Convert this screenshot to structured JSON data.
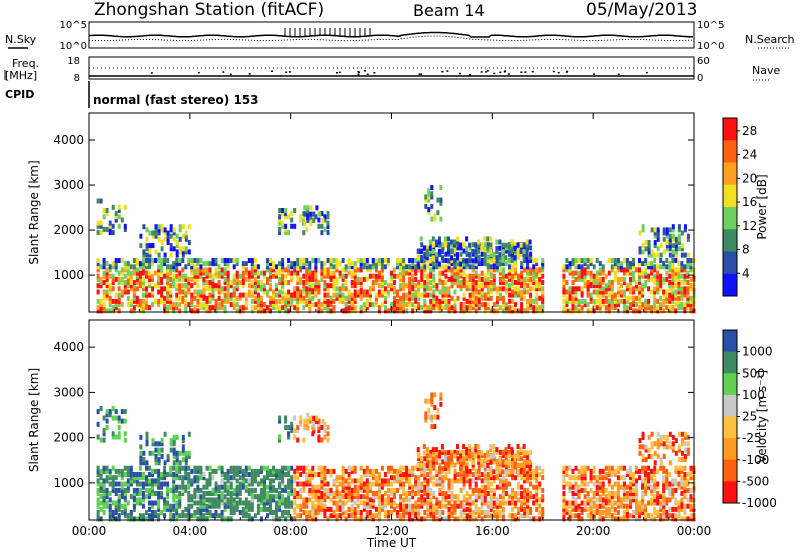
{
  "header": {
    "station_title": "Zhongshan Station (fitACF)",
    "beam": "Beam 14",
    "date": "05/May/2013"
  },
  "top_panels": {
    "nsky_label": "N.Sky",
    "nsky_ticks": [
      "10^5",
      "10^0"
    ],
    "nsearch_label": "N.Search",
    "nsearch_ticks": [
      "10^5",
      "10^0"
    ],
    "freq_label_1": "Freq.",
    "freq_label_2": "[MHz]",
    "freq_ticks": [
      "18",
      "8"
    ],
    "nave_label": "Nave",
    "nave_ticks": [
      "60",
      "0"
    ],
    "cpid_label": "CPID",
    "cpid_text": "normal (fast stereo) 153"
  },
  "colors": {
    "power_scale": [
      "#1010ff",
      "#2a4fa8",
      "#3f8a60",
      "#6fd060",
      "#f0e020",
      "#ffa020",
      "#ff6010",
      "#ff1010"
    ],
    "velocity_scale": [
      "#ff1010",
      "#ff6010",
      "#ff9a20",
      "#ffc040",
      "#c8c8c8",
      "#60d050",
      "#3f8a60",
      "#2a4fa8"
    ]
  },
  "chart_data": [
    {
      "type": "heatmap",
      "name": "power",
      "title": "",
      "xlabel": "",
      "ylabel": "Slant Range [km]",
      "x_ticks": [
        "00:00",
        "04:00",
        "08:00",
        "12:00",
        "16:00",
        "20:00",
        "00:00"
      ],
      "xlim_hours": [
        0,
        24
      ],
      "y_ticks": [
        1000,
        2000,
        3000,
        4000
      ],
      "ylim": [
        180,
        4600
      ],
      "colorbar_label": "Power [dB]",
      "colorbar_ticks": [
        4,
        8,
        12,
        16,
        20,
        24,
        28
      ],
      "colorbar_range": [
        0,
        30
      ]
    },
    {
      "type": "heatmap",
      "name": "velocity",
      "title": "",
      "xlabel": "Time UT",
      "ylabel": "Slant Range [km]",
      "x_ticks": [
        "00:00",
        "04:00",
        "08:00",
        "12:00",
        "16:00",
        "20:00",
        "00:00"
      ],
      "xlim_hours": [
        0,
        24
      ],
      "y_ticks": [
        1000,
        2000,
        3000,
        4000
      ],
      "ylim": [
        180,
        4600
      ],
      "colorbar_label": "Velocity [m s⁻¹]",
      "colorbar_ticks": [
        1000,
        500,
        100,
        25,
        -25,
        -100,
        -500,
        -1000
      ]
    }
  ]
}
